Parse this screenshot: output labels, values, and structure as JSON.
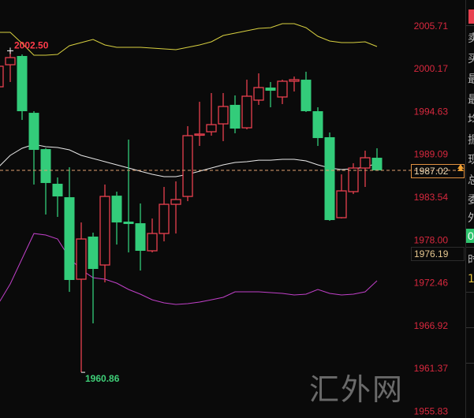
{
  "chart_data": {
    "type": "candlestick",
    "title": "",
    "y_axis": {
      "position": "right",
      "ticks": [
        "2005.71",
        "2000.17",
        "1994.63",
        "1989.09",
        "1983.54",
        "1978.00",
        "1972.46",
        "1966.92",
        "1961.37",
        "1955.83"
      ],
      "range": [
        1955.83,
        2006.5
      ]
    },
    "colors": {
      "up": "#e8404f",
      "down": "#33cc7a",
      "upper_band": "#d8d040",
      "middle_band": "#e8e8e8",
      "lower_band": "#c040c8",
      "axis_text": "#d8283e",
      "last_price_line": "#e0a070",
      "background": "#0a0a0a"
    },
    "candles": [
      {
        "o": 1997.84,
        "h": 2000.9,
        "l": 1996.8,
        "c": 2000.5
      },
      {
        "o": 2000.7,
        "h": 2002.5,
        "l": 1998.46,
        "c": 2001.62
      },
      {
        "o": 2001.83,
        "h": 2002.03,
        "l": 1993.55,
        "c": 1994.68
      },
      {
        "o": 1994.47,
        "h": 1994.68,
        "l": 1985.18,
        "c": 1989.67
      },
      {
        "o": 1989.77,
        "h": 1989.9,
        "l": 1981.3,
        "c": 1985.38
      },
      {
        "o": 1985.28,
        "h": 1986.1,
        "l": 1980.99,
        "c": 1983.64
      },
      {
        "o": 1983.54,
        "h": 1987.42,
        "l": 1971.28,
        "c": 1972.82
      },
      {
        "o": 1972.92,
        "h": 1980.27,
        "l": 1960.86,
        "c": 1978.13
      },
      {
        "o": 1978.44,
        "h": 1978.95,
        "l": 1967.2,
        "c": 1974.25
      },
      {
        "o": 1974.76,
        "h": 1985.18,
        "l": 1972.51,
        "c": 1983.64
      },
      {
        "o": 1983.74,
        "h": 1984.26,
        "l": 1977.41,
        "c": 1980.27
      },
      {
        "o": 1980.38,
        "h": 1991.0,
        "l": 1976.39,
        "c": 1980.07
      },
      {
        "o": 1980.17,
        "h": 1982.73,
        "l": 1974.04,
        "c": 1976.6
      },
      {
        "o": 1976.6,
        "h": 1980.78,
        "l": 1976.39,
        "c": 1978.84
      },
      {
        "o": 1978.84,
        "h": 1984.87,
        "l": 1977.82,
        "c": 1982.62
      },
      {
        "o": 1982.62,
        "h": 1985.59,
        "l": 1978.84,
        "c": 1983.24
      },
      {
        "o": 1983.64,
        "h": 1992.74,
        "l": 1983.03,
        "c": 1991.51
      },
      {
        "o": 1991.61,
        "h": 1995.9,
        "l": 1990.18,
        "c": 1991.72
      },
      {
        "o": 1992.02,
        "h": 1997.03,
        "l": 1991.51,
        "c": 1992.94
      },
      {
        "o": 1993.04,
        "h": 1997.03,
        "l": 1990.8,
        "c": 1995.29
      },
      {
        "o": 1995.5,
        "h": 1996.72,
        "l": 1991.82,
        "c": 1992.43
      },
      {
        "o": 1992.53,
        "h": 1998.76,
        "l": 1992.33,
        "c": 1996.62
      },
      {
        "o": 1996.11,
        "h": 1999.58,
        "l": 1995.5,
        "c": 1997.74
      },
      {
        "o": 1997.74,
        "h": 1998.46,
        "l": 1995.19,
        "c": 1997.33
      },
      {
        "o": 1996.52,
        "h": 1998.76,
        "l": 1995.6,
        "c": 1998.56
      },
      {
        "o": 1998.56,
        "h": 1999.17,
        "l": 1997.23,
        "c": 1998.76
      },
      {
        "o": 1998.76,
        "h": 1999.79,
        "l": 1994.58,
        "c": 1994.68
      },
      {
        "o": 1994.68,
        "h": 1995.19,
        "l": 1990.18,
        "c": 1991.2
      },
      {
        "o": 1991.31,
        "h": 1991.92,
        "l": 1980.48,
        "c": 1980.58
      },
      {
        "o": 1980.89,
        "h": 1986.5,
        "l": 1980.79,
        "c": 1984.36
      },
      {
        "o": 1984.26,
        "h": 1987.94,
        "l": 1983.95,
        "c": 1987.32
      },
      {
        "o": 1987.32,
        "h": 1989.57,
        "l": 1984.87,
        "c": 1988.65
      },
      {
        "o": 1988.65,
        "h": 1989.88,
        "l": 1987.02,
        "c": 1987.02
      }
    ],
    "bands": {
      "upper": [
        2004.89,
        2004.89,
        2003.46,
        2001.93,
        2001.93,
        2002.03,
        2003.16,
        2003.56,
        2003.97,
        2003.26,
        2002.95,
        2002.95,
        2002.95,
        2002.85,
        2002.75,
        2002.65,
        2002.95,
        2003.26,
        2003.67,
        2004.48,
        2004.79,
        2005.1,
        2005.4,
        2005.5,
        2006.02,
        2006.02,
        2005.5,
        2004.38,
        2003.77,
        2003.56,
        2003.56,
        2003.67,
        2003.05
      ],
      "middle": [
        1987.43,
        1988.96,
        1989.88,
        1990.39,
        1990.08,
        1989.98,
        1989.67,
        1988.96,
        1988.55,
        1988.14,
        1987.73,
        1987.32,
        1986.91,
        1986.51,
        1986.2,
        1986.2,
        1986.51,
        1986.91,
        1987.32,
        1987.73,
        1988.04,
        1988.14,
        1988.34,
        1988.34,
        1988.45,
        1988.45,
        1988.24,
        1987.73,
        1987.32,
        1987.12,
        1987.22,
        1987.43,
        1987.94
      ],
      "lower": [
        1969.75,
        1972.31,
        1975.58,
        1978.84,
        1978.64,
        1978.13,
        1975.68,
        1974.15,
        1973.12,
        1972.92,
        1972.41,
        1971.59,
        1970.98,
        1970.26,
        1969.86,
        1969.65,
        1969.75,
        1969.96,
        1970.26,
        1970.57,
        1971.29,
        1971.29,
        1971.29,
        1971.18,
        1971.08,
        1970.88,
        1970.98,
        1971.59,
        1971.08,
        1970.88,
        1970.98,
        1971.29,
        1972.72
      ]
    },
    "annotations": {
      "high_label": "2002.50",
      "high_index": 1,
      "high_value": 2002.5,
      "low_label": "1960.86",
      "low_index": 7,
      "low_value": 1960.86
    },
    "last_price": {
      "label": "1987.02",
      "value": 1987.02
    },
    "cursor_price": {
      "label": "1976.19",
      "value": 1976.19
    }
  },
  "side_panel": {
    "rows": [
      "卖",
      "买",
      "最",
      "最",
      "均",
      "振",
      "现",
      "总",
      "委",
      "外"
    ],
    "badge": "0",
    "time_label": "时",
    "value": "1"
  },
  "watermark": "汇外网"
}
